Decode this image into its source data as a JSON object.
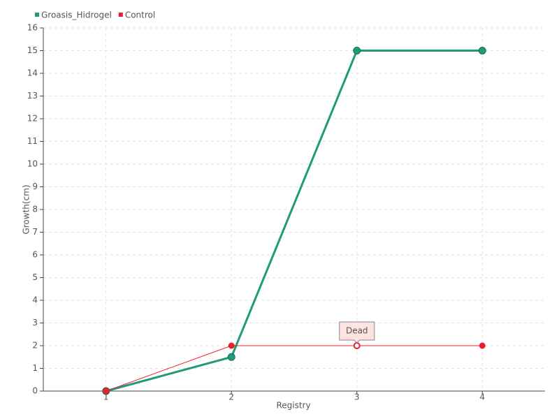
{
  "chart_data": {
    "type": "line",
    "x_label": "Registry",
    "y_label": "Growth(cm)",
    "categories": [
      "1",
      "2",
      "3",
      "4"
    ],
    "series": [
      {
        "name": "Groasis_Hidrogel",
        "color": "#1f9a7a",
        "values": [
          0,
          1.5,
          15,
          15
        ]
      },
      {
        "name": "Control",
        "color": "#e8202d",
        "values": [
          0,
          2,
          2,
          2
        ],
        "point_labels": [
          null,
          null,
          "Dead",
          null
        ]
      }
    ],
    "ylim": [
      0,
      16
    ],
    "yticks": [
      0,
      1,
      2,
      3,
      4,
      5,
      6,
      7,
      8,
      9,
      10,
      11,
      12,
      13,
      14,
      15,
      16
    ],
    "grid": true,
    "legend": "top-left"
  }
}
